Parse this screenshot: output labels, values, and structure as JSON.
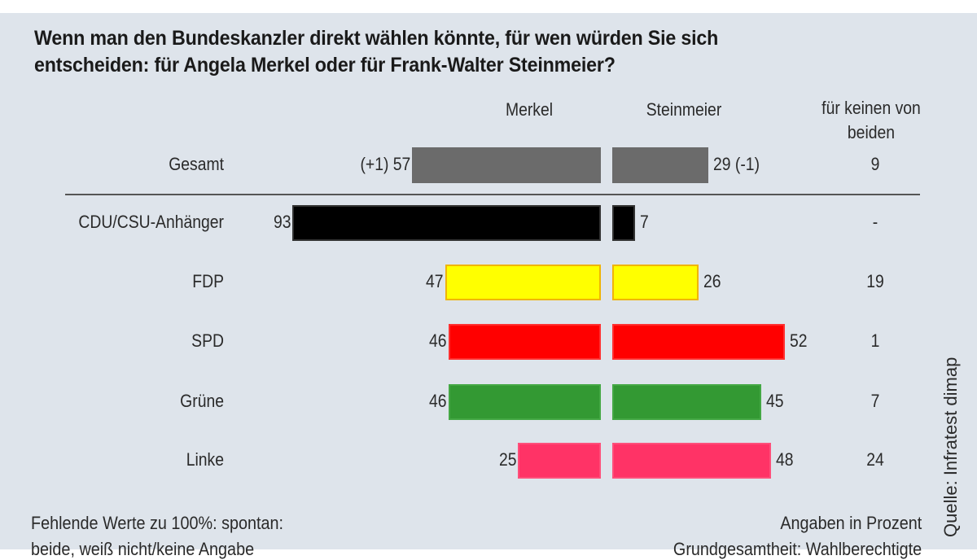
{
  "title": "Wenn man den Bundeskanzler direkt wählen könnte, für wen würden Sie sich entscheiden: für Angela Merkel oder für Frank-Walter Steinmeier?",
  "title_line1": "Wenn man den Bundeskanzler direkt wählen könnte, für wen würden Sie sich",
  "title_line2": "entscheiden: für Angela Merkel oder für Frank-Walter Steinmeier?",
  "columns": {
    "merkel": "Merkel",
    "steinmeier": "Steinmeier",
    "none_line1": "für keinen von",
    "none_line2": "beiden"
  },
  "rows": [
    {
      "label": "Gesamt",
      "merkel": 57,
      "merkel_text": "(+1) 57",
      "steinmeier": 29,
      "steinmeier_text": "29 (-1)",
      "none_text": "9",
      "color": "#6b6b6b",
      "border": "#6b6b6b"
    },
    {
      "label": "CDU/CSU-Anhänger",
      "merkel": 93,
      "merkel_text": "93",
      "steinmeier": 7,
      "steinmeier_text": "7",
      "none_text": "-",
      "color": "#000000",
      "border": "#333333"
    },
    {
      "label": "FDP",
      "merkel": 47,
      "merkel_text": "47",
      "steinmeier": 26,
      "steinmeier_text": "26",
      "none_text": "19",
      "color": "#ffff00",
      "border": "#f0b400"
    },
    {
      "label": "SPD",
      "merkel": 46,
      "merkel_text": "46",
      "steinmeier": 52,
      "steinmeier_text": "52",
      "none_text": "1",
      "color": "#ff0000",
      "border": "#ff3030"
    },
    {
      "label": "Grüne",
      "merkel": 46,
      "merkel_text": "46",
      "steinmeier": 45,
      "steinmeier_text": "45",
      "none_text": "7",
      "color": "#339933",
      "border": "#44a844"
    },
    {
      "label": "Linke",
      "merkel": 25,
      "merkel_text": "25",
      "steinmeier": 48,
      "steinmeier_text": "48",
      "none_text": "24",
      "color": "#ff3366",
      "border": "#ff4f7a"
    }
  ],
  "footer": {
    "left_line1": "Fehlende Werte zu 100%: spontan:",
    "left_line2": "beide, weiß nicht/keine Angabe",
    "right_line1": "Angaben in Prozent",
    "right_line2": "Grundgesamtheit: Wahlberechtigte",
    "source": "Quelle: Infratest dimap"
  },
  "chart_data": {
    "type": "bar",
    "orientation": "horizontal-diverging",
    "title": "Wenn man den Bundeskanzler direkt wählen könnte, für wen würden Sie sich entscheiden: für Angela Merkel oder für Frank-Walter Steinmeier?",
    "categories": [
      "Gesamt",
      "CDU/CSU-Anhänger",
      "FDP",
      "SPD",
      "Grüne",
      "Linke"
    ],
    "series": [
      {
        "name": "Merkel",
        "values": [
          57,
          93,
          47,
          46,
          46,
          25
        ]
      },
      {
        "name": "Steinmeier",
        "values": [
          29,
          7,
          26,
          52,
          45,
          48
        ]
      },
      {
        "name": "für keinen von beiden",
        "values": [
          9,
          null,
          19,
          1,
          7,
          24
        ]
      }
    ],
    "annotations": [
      "Gesamt Merkel (+1)",
      "Gesamt Steinmeier (-1)"
    ],
    "bar_colors": [
      "#6b6b6b",
      "#000000",
      "#ffff00",
      "#ff0000",
      "#339933",
      "#ff3366"
    ],
    "unit": "Angaben in Prozent",
    "source": "Infratest dimap",
    "grid": false,
    "legend": "column headers"
  }
}
